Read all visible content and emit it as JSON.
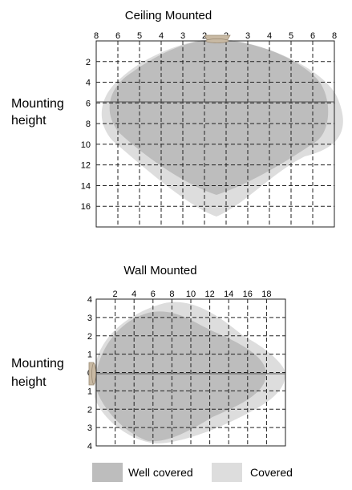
{
  "colors": {
    "background": "#ffffff",
    "grid": "#222222",
    "frame": "#222222",
    "center_line": "#555555",
    "well_covered": "#bdbdbd",
    "covered": "#dddddd",
    "sensor": "#c8b9a3"
  },
  "ceiling": {
    "title": "Ceiling Mounted",
    "side_label_1": "Mounting",
    "side_label_2": "height",
    "top_ticks": [
      "8",
      "6",
      "5",
      "4",
      "3",
      "2",
      "2",
      "3",
      "4",
      "5",
      "6",
      "8"
    ],
    "left_ticks": [
      "2",
      "4",
      "6",
      "8",
      "10",
      "12",
      "14",
      "16"
    ],
    "sensor_icon": "ceiling-sensor-icon"
  },
  "wall": {
    "title": "Wall Mounted",
    "side_label_1": "Mounting",
    "side_label_2": "height",
    "top_ticks": [
      "2",
      "4",
      "6",
      "8",
      "10",
      "12",
      "14",
      "16",
      "18"
    ],
    "left_ticks": [
      "4",
      "3",
      "2",
      "1",
      "0",
      "1",
      "2",
      "3",
      "4"
    ],
    "sensor_icon": "wall-sensor-icon"
  },
  "legend": {
    "well_covered": "Well covered",
    "covered": "Covered"
  }
}
